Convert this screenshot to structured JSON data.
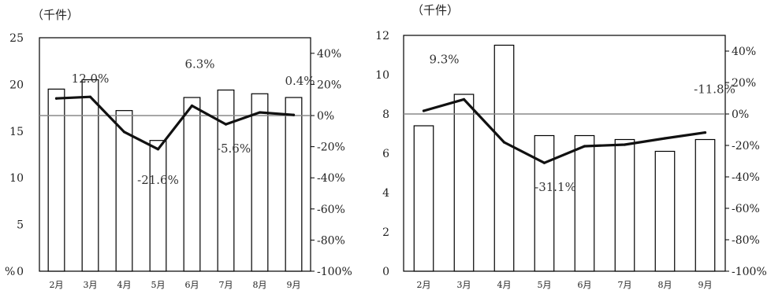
{
  "chart_data": [
    {
      "type": "bar+line",
      "unit_label": "（千件）",
      "categories": [
        "2月",
        "3月",
        "4月",
        "5月",
        "6月",
        "7月",
        "8月",
        "9月"
      ],
      "bar_series": {
        "values": [
          19.5,
          20.5,
          17.2,
          14.0,
          18.6,
          19.4,
          19.0,
          18.6
        ],
        "axis": "left"
      },
      "line_series": {
        "values": [
          11.0,
          12.0,
          -10.5,
          -21.6,
          6.3,
          -5.6,
          2.0,
          0.4
        ],
        "axis": "right"
      },
      "left_axis": {
        "ylim": [
          0,
          25
        ],
        "ticks": [
          "0",
          "5",
          "10",
          "15",
          "20",
          "25"
        ]
      },
      "right_axis": {
        "ylim": [
          -100,
          50
        ],
        "ticks": [
          "-100%",
          "-80%",
          "-60%",
          "-40%",
          "-20%",
          "0%",
          "20%",
          "40%"
        ]
      },
      "annotations": [
        "12.0%",
        "6.3%",
        "0.4%",
        "-21.6%",
        "-5.6%"
      ],
      "corner_glyph": "%"
    },
    {
      "type": "bar+line",
      "unit_label": "（千件）",
      "categories": [
        "2月",
        "3月",
        "4月",
        "5月",
        "6月",
        "7月",
        "8月",
        "9月"
      ],
      "bar_series": {
        "values": [
          7.4,
          9.0,
          11.5,
          6.9,
          6.9,
          6.7,
          6.1,
          6.7
        ],
        "axis": "left"
      },
      "line_series": {
        "values": [
          2.0,
          9.3,
          -18.0,
          -31.1,
          -20.5,
          -19.5,
          -15.5,
          -11.8
        ],
        "axis": "right"
      },
      "left_axis": {
        "ylim": [
          0,
          12
        ],
        "ticks": [
          "0",
          "2",
          "4",
          "6",
          "8",
          "10",
          "12"
        ]
      },
      "right_axis": {
        "ylim": [
          -100,
          50
        ],
        "ticks": [
          "-100%",
          "-80%",
          "-60%",
          "-40%",
          "-20%",
          "0%",
          "20%",
          "40%"
        ]
      },
      "annotations": [
        "9.3%",
        "-31.1%",
        "-11.8%"
      ]
    }
  ]
}
